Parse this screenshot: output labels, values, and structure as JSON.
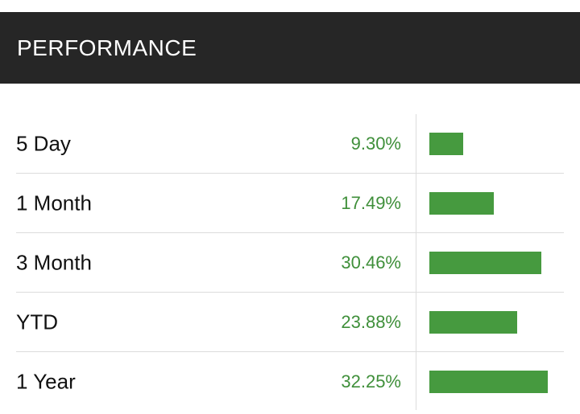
{
  "header": {
    "title": "PERFORMANCE"
  },
  "colors": {
    "header_bg": "#262626",
    "positive": "#3f8f3a",
    "bar": "#469a3f"
  },
  "rows": [
    {
      "label": "5 Day",
      "value": "9.30%",
      "pct": 9.3
    },
    {
      "label": "1 Month",
      "value": "17.49%",
      "pct": 17.49
    },
    {
      "label": "3 Month",
      "value": "30.46%",
      "pct": 30.46
    },
    {
      "label": "YTD",
      "value": "23.88%",
      "pct": 23.88
    },
    {
      "label": "1 Year",
      "value": "32.25%",
      "pct": 32.25
    }
  ]
}
